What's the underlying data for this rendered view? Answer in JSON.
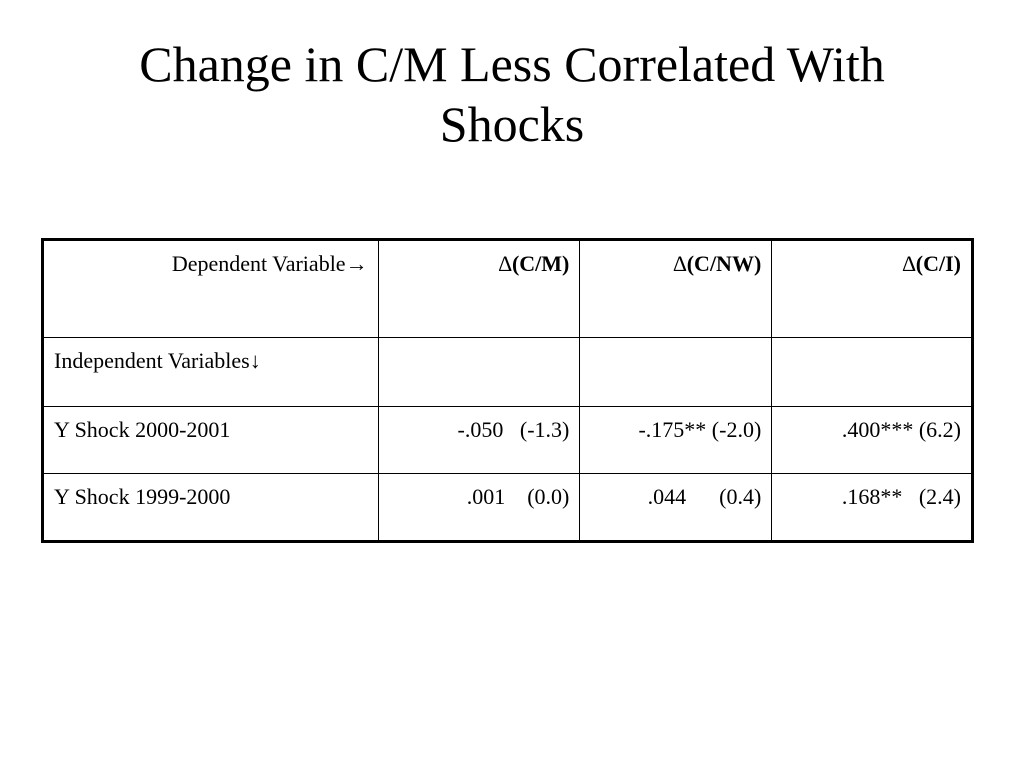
{
  "slide": {
    "title_line1": "Change in C/M Less Correlated With",
    "title_line2": "Shocks"
  },
  "table": {
    "header": {
      "dependent_label": "Dependent Variable→",
      "columns": [
        {
          "delta": "∆",
          "label": "(C/M)"
        },
        {
          "delta": "∆",
          "label": "(C/NW)"
        },
        {
          "delta": "∆",
          "label": "(C/I)"
        }
      ]
    },
    "independent_label": "Independent Variables↓",
    "rows": [
      {
        "label": "Y Shock 2000-2001",
        "cells": [
          "-.050   (-1.3)",
          "-.175** (-2.0)",
          ".400*** (6.2)"
        ]
      },
      {
        "label": "Y Shock 1999-2000",
        "cells": [
          ".001    (0.0)",
          ".044      (0.4)",
          ".168**   (2.4)"
        ]
      }
    ]
  }
}
